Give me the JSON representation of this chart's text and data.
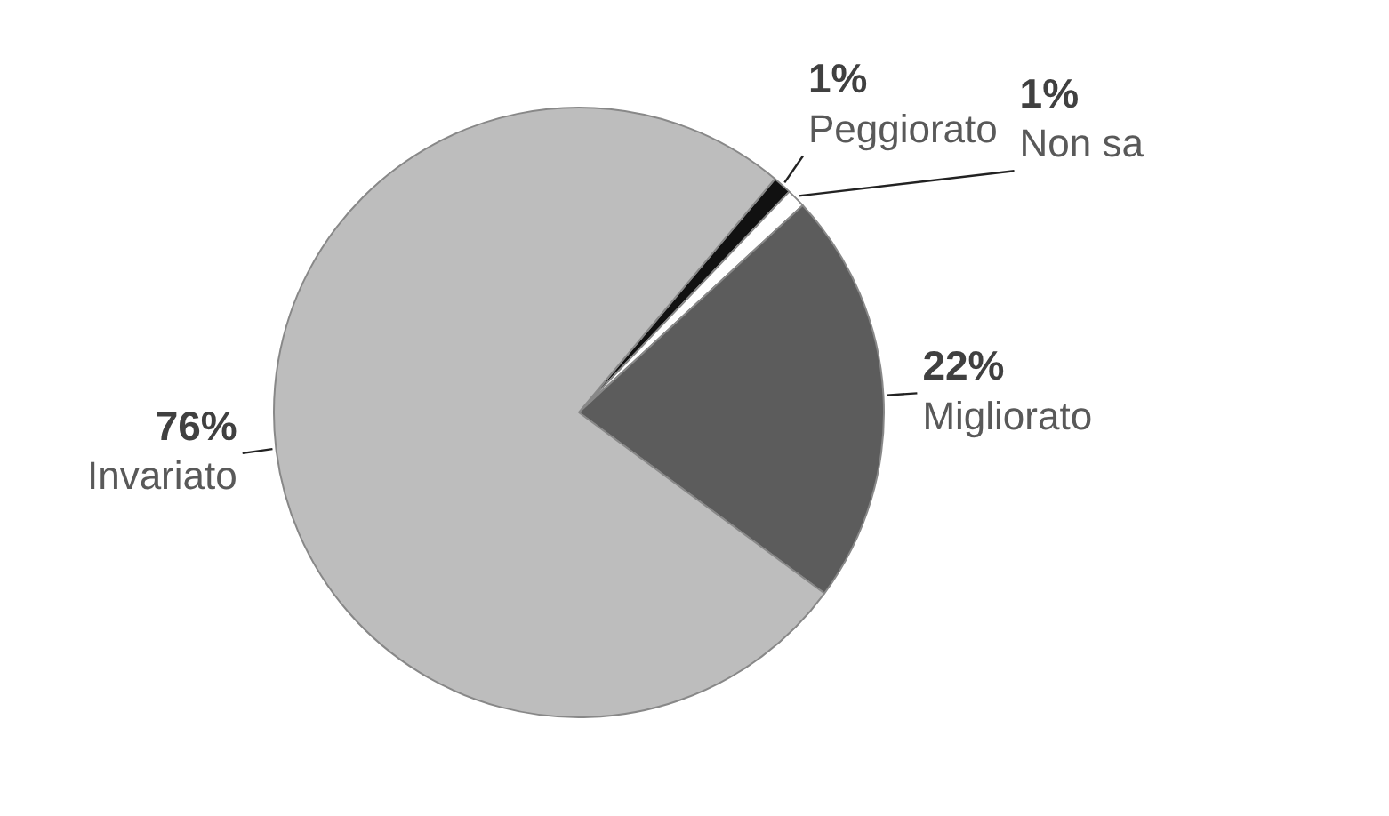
{
  "chart_data": {
    "type": "pie",
    "categories": [
      "Peggiorato",
      "Non sa",
      "Migliorato",
      "Invariato"
    ],
    "values": [
      1,
      1,
      22,
      76
    ],
    "value_labels": [
      "1%",
      "1%",
      "22%",
      "76%"
    ],
    "colors": [
      "#111111",
      "#ffffff",
      "#5c5c5c",
      "#bdbdbd"
    ]
  }
}
